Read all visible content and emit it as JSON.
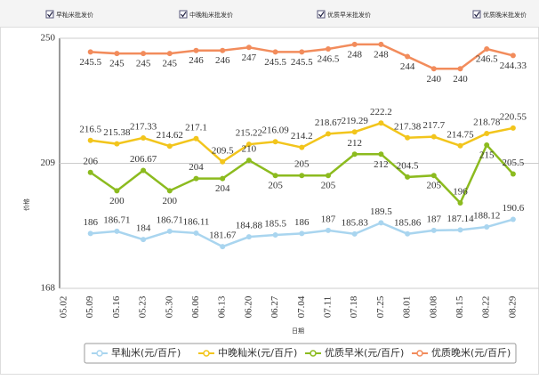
{
  "filters": [
    "早籼米批发价",
    "中晚籼米批发价",
    "优质早米批发价",
    "优质晚米批发价"
  ],
  "chart_data": {
    "type": "line",
    "y_label": "价格",
    "x_label": "日期",
    "categories": [
      "05.02",
      "05.09",
      "05.16",
      "05.23",
      "05.30",
      "06.06",
      "06.13",
      "06.20",
      "06.27",
      "07.04",
      "07.11",
      "07.18",
      "07.25",
      "08.01",
      "08.08",
      "08.15",
      "08.22",
      "08.29"
    ],
    "ylim": [
      168,
      250
    ],
    "yticks": [
      168,
      209,
      250
    ],
    "series": [
      {
        "name": "早籼米(元/百斤)",
        "color": "#a9d5ef",
        "values": [
          null,
          186,
          186.71,
          184,
          186.71,
          186.11,
          181.67,
          184.88,
          185.5,
          186,
          187,
          185.83,
          189.5,
          185.86,
          187,
          187.14,
          188.12,
          190.6
        ]
      },
      {
        "name": "中晚籼米(元/百斤)",
        "color": "#f2c51c",
        "values": [
          null,
          216.5,
          215.38,
          217.33,
          214.62,
          217.1,
          209.5,
          215.22,
          216.09,
          214.2,
          218.67,
          219.29,
          222.2,
          217.38,
          217.7,
          214.75,
          218.78,
          220.55
        ]
      },
      {
        "name": "优质早米(元/百斤)",
        "color": "#8cbb1f",
        "values": [
          null,
          206,
          200,
          206.67,
          200,
          204,
          204,
          210,
          205,
          205,
          205,
          212,
          212,
          204.5,
          205,
          196,
          215,
          205.5
        ]
      },
      {
        "name": "优质晚米(元/百斤)",
        "color": "#f28c5c",
        "values": [
          null,
          245.5,
          245,
          245,
          245,
          246,
          246,
          247,
          245.5,
          245.5,
          246.5,
          248,
          248,
          244,
          240,
          240,
          246.5,
          244.33
        ]
      }
    ]
  }
}
